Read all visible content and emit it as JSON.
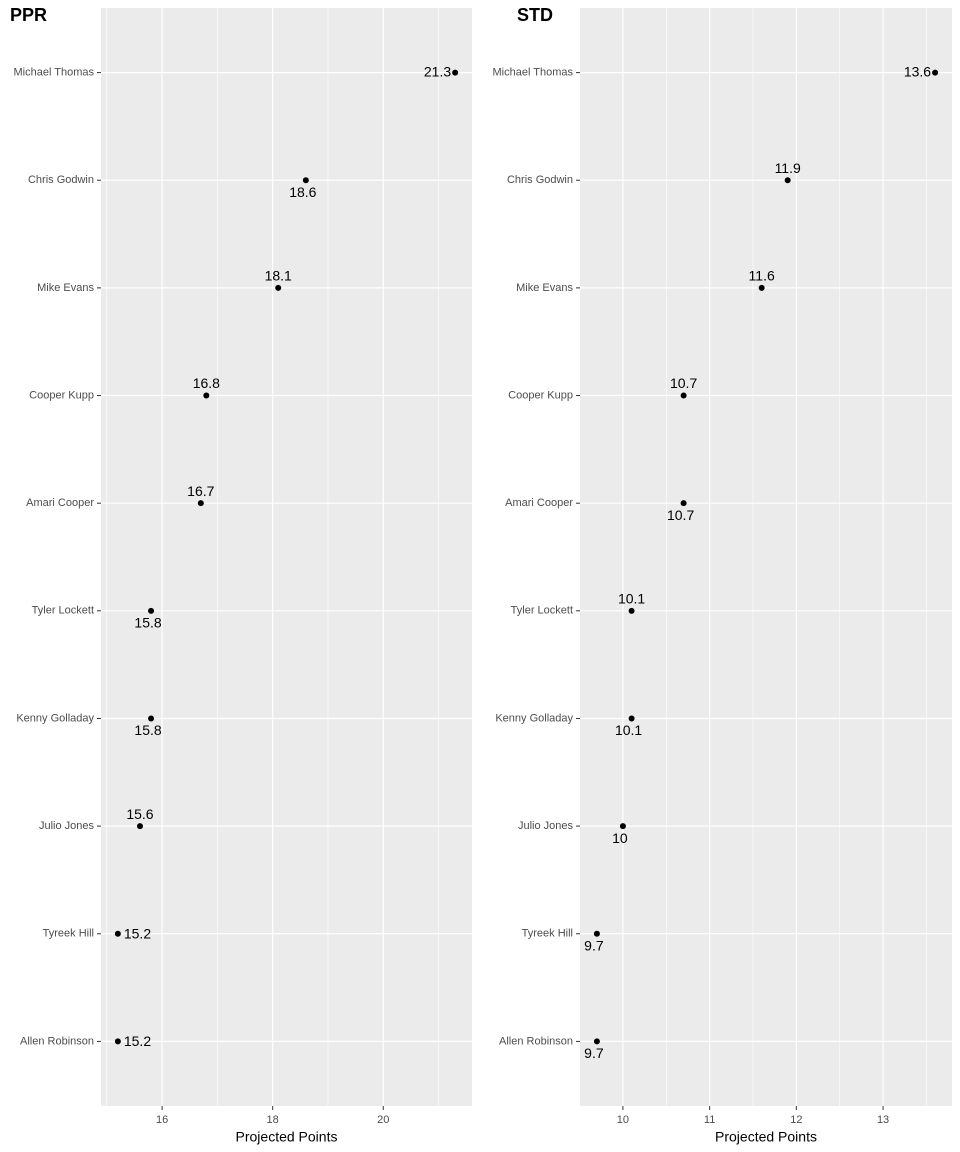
{
  "chart_data": [
    {
      "type": "dot",
      "title": "PPR",
      "x_label": "Projected Points",
      "categories": [
        "Michael Thomas",
        "Chris Godwin",
        "Mike Evans",
        "Cooper Kupp",
        "Amari Cooper",
        "Tyler Lockett",
        "Kenny Golladay",
        "Julio Jones",
        "Tyreek Hill",
        "Allen Robinson"
      ],
      "values": [
        21.3,
        18.6,
        18.1,
        16.8,
        16.7,
        15.8,
        15.8,
        15.6,
        15.2,
        15.2
      ],
      "color": "#000000",
      "xlim": [
        14.895,
        21.605
      ],
      "xticks": [
        16,
        18,
        20
      ],
      "xminor": [
        15,
        17,
        19,
        21
      ],
      "grid": true
    },
    {
      "type": "dot",
      "title": "STD",
      "x_label": "Projected Points",
      "categories": [
        "Michael Thomas",
        "Chris Godwin",
        "Mike Evans",
        "Cooper Kupp",
        "Amari Cooper",
        "Tyler Lockett",
        "Kenny Golladay",
        "Julio Jones",
        "Tyreek Hill",
        "Allen Robinson"
      ],
      "values": [
        13.6,
        11.9,
        11.6,
        10.7,
        10.7,
        10.1,
        10.1,
        10,
        9.7,
        9.7
      ],
      "color": "#000000",
      "xlim": [
        9.505,
        13.795
      ],
      "xticks": [
        10,
        11,
        12,
        13
      ],
      "xminor": [
        9.5,
        10.5,
        11.5,
        12.5,
        13.5
      ],
      "grid": true
    }
  ]
}
